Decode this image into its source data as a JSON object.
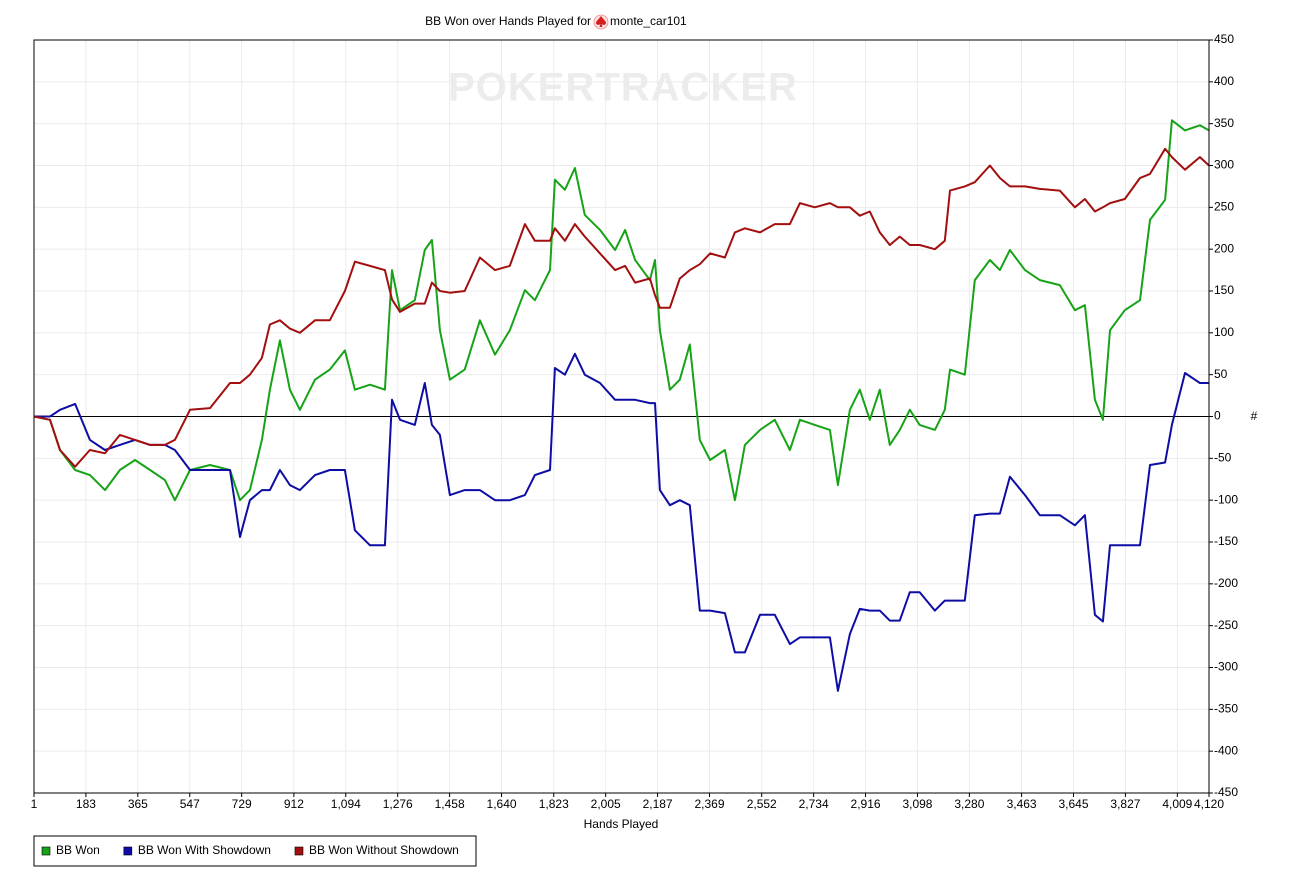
{
  "chart_data": {
    "type": "line",
    "title": "BB Won over Hands Played for",
    "player": "monte_car101",
    "watermark": "POKERTRACKER",
    "x_label": "Hands Played",
    "y_label": "#",
    "grid": true,
    "legend": "bottom-left",
    "xlim": [
      1,
      4120
    ],
    "xticks": [
      1,
      183,
      365,
      547,
      729,
      912,
      {
        "value": 1094,
        "label": "1,094"
      },
      {
        "value": 1276,
        "label": "1,276"
      },
      {
        "value": 1458,
        "label": "1,458"
      },
      {
        "value": 1640,
        "label": "1,640"
      },
      {
        "value": 1823,
        "label": "1,823"
      },
      {
        "value": 2005,
        "label": "2,005"
      },
      {
        "value": 2187,
        "label": "2,187"
      },
      {
        "value": 2369,
        "label": "2,369"
      },
      {
        "value": 2552,
        "label": "2,552"
      },
      {
        "value": 2734,
        "label": "2,734"
      },
      {
        "value": 2916,
        "label": "2,916"
      },
      {
        "value": 3098,
        "label": "3,098"
      },
      {
        "value": 3280,
        "label": "3,280"
      },
      {
        "value": 3463,
        "label": "3,463"
      },
      {
        "value": 3645,
        "label": "3,645"
      },
      {
        "value": 3827,
        "label": "3,827"
      },
      {
        "value": 4009,
        "label": "4,009"
      },
      {
        "value": 4120,
        "label": "4,120"
      }
    ],
    "ylim": [
      -450,
      450
    ],
    "yticks": [
      -450,
      -400,
      -350,
      -300,
      -250,
      -200,
      -150,
      -100,
      -50,
      0,
      50,
      100,
      150,
      200,
      250,
      300,
      350,
      400,
      450
    ],
    "x": [
      1,
      57,
      92,
      145,
      197,
      250,
      302,
      355,
      408,
      460,
      495,
      548,
      618,
      688,
      723,
      758,
      800,
      828,
      863,
      898,
      933,
      986,
      1038,
      1091,
      1126,
      1179,
      1231,
      1256,
      1284,
      1336,
      1371,
      1396,
      1424,
      1459,
      1511,
      1564,
      1617,
      1669,
      1722,
      1757,
      1810,
      1827,
      1862,
      1897,
      1932,
      1985,
      2038,
      2073,
      2108,
      2160,
      2178,
      2195,
      2230,
      2265,
      2300,
      2335,
      2371,
      2423,
      2458,
      2493,
      2546,
      2598,
      2651,
      2686,
      2738,
      2791,
      2819,
      2861,
      2896,
      2931,
      2966,
      3001,
      3036,
      3071,
      3106,
      3159,
      3194,
      3212,
      3264,
      3299,
      3352,
      3387,
      3422,
      3475,
      3527,
      3597,
      3650,
      3685,
      3720,
      3748,
      3773,
      3825,
      3878,
      3913,
      3966,
      3990,
      4036,
      4088,
      4120
    ],
    "series": [
      {
        "name": "BB Won",
        "color": "#17a317",
        "values": [
          0,
          -4,
          -40,
          -64,
          -70,
          -88,
          -64,
          -52,
          -64,
          -76,
          -100,
          -64,
          -58,
          -64,
          -100,
          -88,
          -28,
          32,
          91,
          32,
          8,
          44,
          56,
          79,
          32,
          38,
          32,
          175,
          127,
          139,
          199,
          211,
          103,
          44,
          56,
          115,
          74,
          103,
          151,
          139,
          175,
          283,
          271,
          297,
          241,
          223,
          199,
          223,
          187,
          163,
          187,
          103,
          32,
          44,
          86,
          -28,
          -52,
          -40,
          -100,
          -34,
          -16,
          -4,
          -40,
          -4,
          -10,
          -16,
          -82,
          8,
          32,
          -4,
          32,
          -34,
          -16,
          8,
          -10,
          -16,
          8,
          56,
          50,
          163,
          187,
          175,
          199,
          175,
          163,
          157,
          127,
          133,
          20,
          -4,
          103,
          127,
          139,
          235,
          259,
          354,
          342,
          348,
          342
        ]
      },
      {
        "name": "BB Won With Showdown",
        "color": "#0d0da6",
        "values": [
          0,
          0,
          8,
          15,
          -28,
          -40,
          -34,
          -28,
          -34,
          -34,
          -40,
          -64,
          -64,
          -64,
          -144,
          -100,
          -88,
          -88,
          -64,
          -82,
          -88,
          -70,
          -64,
          -64,
          -136,
          -154,
          -154,
          20,
          -4,
          -10,
          40,
          -10,
          -22,
          -94,
          -88,
          -88,
          -100,
          -100,
          -94,
          -70,
          -64,
          58,
          50,
          75,
          50,
          40,
          20,
          20,
          20,
          16,
          16,
          -88,
          -106,
          -100,
          -106,
          -232,
          -232,
          -235,
          -282,
          -282,
          -237,
          -237,
          -272,
          -264,
          -264,
          -264,
          -328,
          -260,
          -230,
          -232,
          -232,
          -244,
          -244,
          -210,
          -210,
          -232,
          -220,
          -220,
          -220,
          -118,
          -116,
          -116,
          -72,
          -94,
          -118,
          -118,
          -130,
          -118,
          -237,
          -245,
          -154,
          -154,
          -154,
          -58,
          -55,
          -10,
          52,
          40,
          40
        ]
      },
      {
        "name": "BB Won Without Showdown",
        "color": "#a30f0f",
        "values": [
          0,
          -4,
          -40,
          -60,
          -40,
          -44,
          -22,
          -28,
          -34,
          -34,
          -28,
          8,
          10,
          40,
          40,
          50,
          70,
          110,
          115,
          105,
          100,
          115,
          115,
          150,
          185,
          180,
          175,
          140,
          125,
          135,
          135,
          160,
          150,
          148,
          150,
          190,
          175,
          180,
          230,
          210,
          210,
          225,
          210,
          230,
          215,
          195,
          175,
          180,
          160,
          165,
          145,
          130,
          130,
          165,
          175,
          182,
          195,
          190,
          220,
          225,
          220,
          230,
          230,
          255,
          250,
          255,
          250,
          250,
          240,
          245,
          220,
          205,
          215,
          205,
          205,
          200,
          210,
          270,
          275,
          280,
          300,
          285,
          275,
          275,
          272,
          270,
          250,
          260,
          245,
          250,
          255,
          260,
          285,
          290,
          320,
          310,
          295,
          310,
          300
        ]
      }
    ]
  }
}
